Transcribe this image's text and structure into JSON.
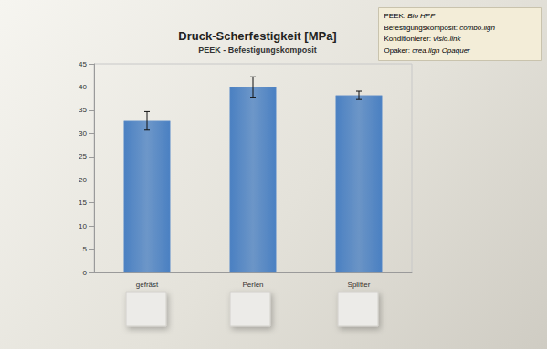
{
  "chart_data": {
    "type": "bar",
    "title": "Druck-Scherfestigkeit [MPa]",
    "subtitle": "PEEK - Befestigungskomposit",
    "annotations": [
      "PEEK: Bio HPP",
      "Befestigungskomposit: combo.lign",
      "Konditionierer: visio.link",
      "Opaker: crea.lign Opaquer"
    ],
    "categories": [
      "gefräst",
      "Perlen",
      "Splitter"
    ],
    "values": [
      32.7,
      40.0,
      38.2
    ],
    "errors": [
      2.0,
      2.2,
      0.9
    ],
    "color": "#4a80c2",
    "ylim": [
      0,
      45
    ],
    "yticks": [
      0,
      5,
      10,
      15,
      20,
      25,
      30,
      35,
      40,
      45
    ],
    "grid": false
  }
}
